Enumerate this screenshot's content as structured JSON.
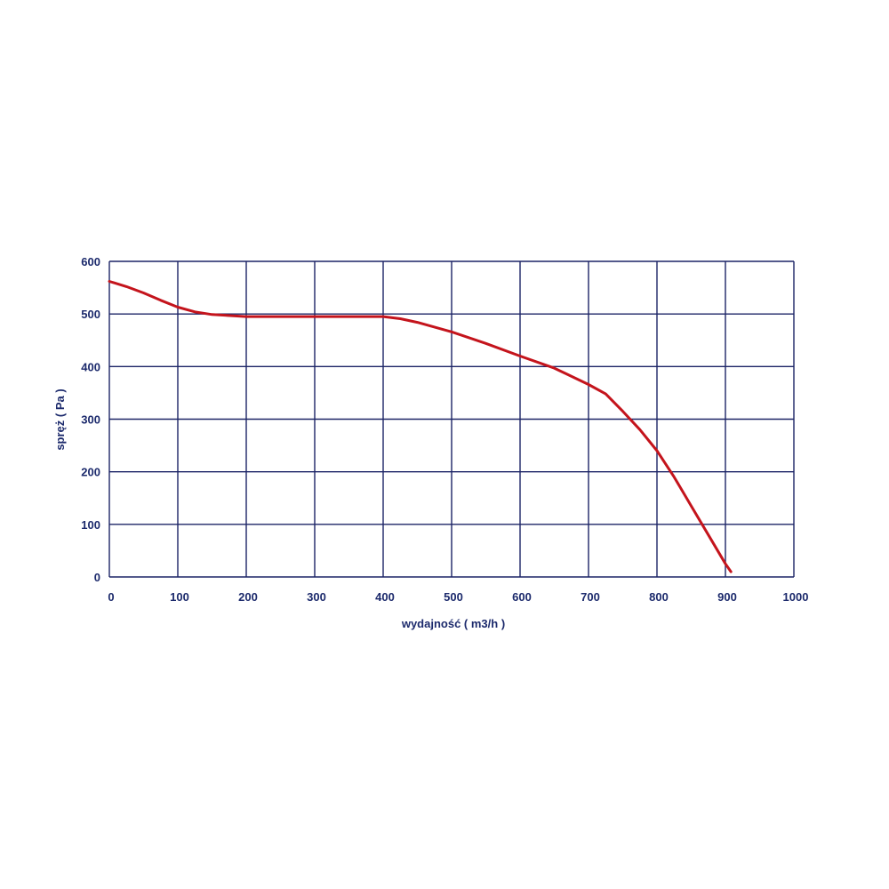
{
  "colors": {
    "background": "#ffffff",
    "grid": "#1c2466",
    "text": "#1c2a6c",
    "curve": "#c4141c"
  },
  "chart_data": {
    "type": "line",
    "title": "",
    "xlabel": "wydajność ( m3/h )",
    "ylabel": "spręż ( Pa )",
    "xlim": [
      0,
      1000
    ],
    "ylim": [
      0,
      600
    ],
    "xticks": [
      0,
      100,
      200,
      300,
      400,
      500,
      600,
      700,
      800,
      900,
      1000
    ],
    "yticks": [
      0,
      100,
      200,
      300,
      400,
      500,
      600
    ],
    "grid": true,
    "legend": "none",
    "series": [
      {
        "color": "#c4141c",
        "x": [
          0,
          25,
          50,
          75,
          100,
          125,
          150,
          200,
          300,
          400,
          425,
          450,
          500,
          550,
          600,
          650,
          700,
          725,
          750,
          775,
          800,
          825,
          850,
          875,
          900,
          908
        ],
        "y": [
          562,
          552,
          540,
          526,
          513,
          504,
          499,
          495,
          495,
          495,
          491,
          484,
          466,
          444,
          420,
          397,
          366,
          348,
          315,
          280,
          240,
          190,
          135,
          80,
          25,
          10
        ]
      }
    ]
  }
}
